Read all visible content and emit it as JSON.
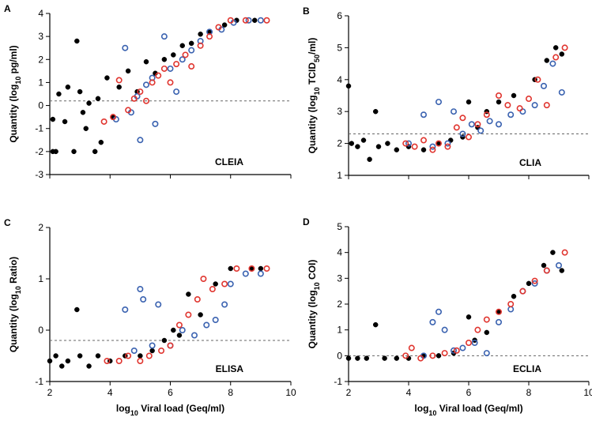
{
  "chart_data": [
    {
      "type": "scatter",
      "panel": "A",
      "ylabel": [
        "Quantity (log",
        "10",
        " pg/ml)"
      ],
      "annotation": "CLEIA",
      "xlim": [
        2,
        10
      ],
      "xticks": [
        2,
        4,
        6,
        8,
        10
      ],
      "show_xtick_labels": false,
      "ylim": [
        -3,
        4
      ],
      "yticks": [
        -3,
        -2,
        -1,
        0,
        1,
        2,
        3,
        4
      ],
      "threshold": 0.2,
      "series": [
        {
          "color": "#000000",
          "filled": true,
          "x": [
            2.1,
            2.2,
            2.1,
            2.3,
            2.5,
            2.6,
            2.8,
            2.9,
            3.0,
            3.1,
            3.2,
            3.3,
            3.5,
            3.6,
            3.7,
            3.9,
            4.1,
            4.3,
            4.6,
            4.9,
            5.2,
            5.5,
            5.8,
            6.1,
            6.4,
            6.7,
            7.0,
            7.3,
            7.8,
            8.2,
            8.8
          ],
          "values": [
            -2,
            -2,
            -0.6,
            0.5,
            -0.7,
            0.8,
            -2,
            2.8,
            0.6,
            -0.3,
            -1,
            0.1,
            -2,
            0.3,
            -1.6,
            1.2,
            -0.5,
            0.8,
            1.5,
            0.6,
            1.9,
            1.4,
            2.0,
            2.2,
            2.6,
            2.7,
            3.1,
            3.2,
            3.5,
            3.7,
            3.7
          ]
        },
        {
          "color": "#3a62b0",
          "filled": false,
          "x": [
            4.2,
            4.5,
            4.7,
            4.9,
            5.0,
            5.2,
            5.4,
            5.5,
            5.8,
            6.0,
            6.2,
            6.4,
            6.7,
            7.0,
            7.3,
            7.7,
            8.1,
            8.6,
            9.0
          ],
          "values": [
            -0.6,
            2.5,
            -0.3,
            0.4,
            -1.5,
            0.9,
            1.2,
            -0.8,
            3.0,
            1.6,
            0.6,
            2.0,
            2.4,
            2.8,
            3.2,
            3.3,
            3.6,
            3.7,
            3.7
          ]
        },
        {
          "color": "#e0352f",
          "filled": false,
          "x": [
            3.8,
            4.1,
            4.3,
            4.6,
            4.8,
            5.0,
            5.2,
            5.4,
            5.6,
            5.8,
            6.0,
            6.2,
            6.5,
            6.7,
            7.0,
            7.3,
            7.6,
            8.0,
            8.5,
            9.2
          ],
          "values": [
            -0.7,
            -0.5,
            1.1,
            -0.2,
            0.3,
            0.6,
            0.2,
            1.0,
            1.3,
            1.6,
            1.0,
            1.8,
            2.2,
            1.7,
            2.6,
            3.0,
            3.4,
            3.7,
            3.7,
            3.7
          ]
        }
      ]
    },
    {
      "type": "scatter",
      "panel": "B",
      "ylabel": [
        "Quantity (log",
        "10",
        " TCID",
        "50",
        "/ml)"
      ],
      "annotation": "CLIA",
      "xlim": [
        2,
        10
      ],
      "xticks": [
        2,
        4,
        6,
        8,
        10
      ],
      "show_xtick_labels": false,
      "ylim": [
        1,
        6
      ],
      "yticks": [
        1,
        2,
        3,
        4,
        5,
        6
      ],
      "threshold": 2.3,
      "series": [
        {
          "color": "#000000",
          "filled": true,
          "x": [
            2.0,
            2.1,
            2.3,
            2.5,
            2.7,
            2.9,
            3.0,
            3.3,
            3.6,
            4.0,
            4.5,
            5.0,
            5.4,
            5.8,
            6.0,
            6.3,
            6.6,
            7.0,
            7.5,
            8.2,
            8.6,
            8.9,
            9.1
          ],
          "values": [
            3.8,
            2.0,
            1.9,
            2.1,
            1.5,
            3.0,
            1.9,
            2.0,
            1.8,
            1.9,
            1.8,
            2.0,
            2.1,
            2.2,
            3.3,
            2.5,
            3.0,
            3.3,
            3.5,
            4.0,
            4.6,
            5.0,
            4.8
          ]
        },
        {
          "color": "#3a62b0",
          "filled": false,
          "x": [
            4.0,
            4.5,
            4.8,
            5.0,
            5.3,
            5.5,
            5.8,
            6.1,
            6.4,
            6.7,
            7.0,
            7.4,
            7.8,
            8.2,
            8.5,
            8.8,
            9.1
          ],
          "values": [
            2.0,
            2.9,
            1.9,
            3.3,
            2.0,
            3.0,
            2.3,
            2.6,
            2.4,
            2.7,
            2.6,
            2.9,
            3.0,
            3.2,
            3.8,
            4.5,
            3.6
          ]
        },
        {
          "color": "#e0352f",
          "filled": false,
          "x": [
            3.9,
            4.2,
            4.5,
            4.8,
            5.0,
            5.3,
            5.6,
            5.8,
            6.0,
            6.3,
            6.6,
            7.0,
            7.3,
            7.7,
            8.0,
            8.3,
            8.6,
            8.9,
            9.2
          ],
          "values": [
            2.0,
            1.9,
            2.1,
            1.8,
            2.0,
            1.9,
            2.5,
            2.8,
            2.2,
            2.6,
            2.9,
            3.5,
            3.2,
            3.1,
            3.4,
            4.0,
            3.2,
            4.7,
            5.0
          ]
        }
      ]
    },
    {
      "type": "scatter",
      "panel": "C",
      "ylabel": [
        "Quantity (log",
        "10",
        " Ratio)"
      ],
      "annotation": "ELISA",
      "xlabel": [
        "log",
        "10",
        " Viral load (Geq/ml)"
      ],
      "xlim": [
        2,
        10
      ],
      "xticks": [
        2,
        4,
        6,
        8,
        10
      ],
      "show_xtick_labels": true,
      "ylim": [
        -1,
        2
      ],
      "yticks": [
        -1,
        0,
        1,
        2
      ],
      "threshold": -0.2,
      "series": [
        {
          "color": "#000000",
          "filled": true,
          "x": [
            2.0,
            2.2,
            2.4,
            2.6,
            2.9,
            3.0,
            3.3,
            3.6,
            4.0,
            4.5,
            5.0,
            5.4,
            5.8,
            6.1,
            6.3,
            6.6,
            7.0,
            7.5,
            8.0,
            8.7,
            9.0
          ],
          "values": [
            -0.6,
            -0.5,
            -0.7,
            -0.6,
            0.4,
            -0.5,
            -0.7,
            -0.5,
            -0.6,
            -0.5,
            -0.5,
            -0.4,
            -0.2,
            0.0,
            -0.1,
            0.7,
            0.3,
            0.9,
            1.2,
            1.2,
            1.2
          ]
        },
        {
          "color": "#3a62b0",
          "filled": false,
          "x": [
            4.5,
            4.8,
            5.0,
            5.1,
            5.4,
            5.6,
            6.0,
            6.4,
            6.8,
            7.2,
            7.5,
            7.8,
            8.0,
            8.5,
            9.0
          ],
          "values": [
            0.4,
            -0.4,
            0.8,
            0.6,
            -0.3,
            0.5,
            -0.3,
            0.0,
            -0.1,
            0.1,
            0.2,
            0.5,
            0.9,
            1.1,
            1.1
          ]
        },
        {
          "color": "#e0352f",
          "filled": false,
          "x": [
            3.9,
            4.3,
            4.6,
            5.0,
            5.3,
            5.7,
            6.0,
            6.3,
            6.6,
            6.9,
            7.1,
            7.4,
            7.8,
            8.2,
            8.7,
            9.2
          ],
          "values": [
            -0.6,
            -0.6,
            -0.5,
            -0.6,
            -0.5,
            -0.4,
            -0.3,
            0.1,
            0.3,
            0.6,
            1.0,
            0.8,
            0.9,
            1.2,
            1.2,
            1.2
          ]
        }
      ]
    },
    {
      "type": "scatter",
      "panel": "D",
      "ylabel": [
        "Quantity (log",
        "10",
        " COI)"
      ],
      "annotation": "ECLIA",
      "xlabel": [
        "log",
        "10",
        " Viral load (Geq/ml)"
      ],
      "xlim": [
        2,
        10
      ],
      "xticks": [
        2,
        4,
        6,
        8,
        10
      ],
      "show_xtick_labels": true,
      "ylim": [
        -1,
        5
      ],
      "yticks": [
        -1,
        0,
        1,
        2,
        3,
        4,
        5
      ],
      "threshold": 0,
      "series": [
        {
          "color": "#000000",
          "filled": true,
          "x": [
            2.0,
            2.3,
            2.6,
            2.9,
            3.2,
            3.6,
            4.0,
            4.5,
            5.0,
            5.5,
            6.0,
            6.2,
            6.6,
            7.0,
            7.5,
            8.0,
            8.5,
            8.8,
            9.1
          ],
          "values": [
            -0.1,
            -0.1,
            -0.1,
            1.2,
            -0.1,
            -0.1,
            -0.1,
            0.0,
            0.0,
            0.1,
            1.5,
            0.6,
            0.9,
            1.7,
            2.3,
            2.8,
            3.5,
            4.0,
            3.3
          ]
        },
        {
          "color": "#3a62b0",
          "filled": false,
          "x": [
            4.5,
            4.8,
            5.0,
            5.2,
            5.5,
            5.8,
            6.2,
            6.6,
            7.0,
            7.4,
            7.8,
            8.2,
            8.6,
            9.0
          ],
          "values": [
            0.0,
            1.3,
            1.7,
            1.0,
            0.2,
            0.3,
            0.5,
            0.1,
            1.3,
            1.8,
            2.5,
            2.8,
            3.3,
            3.5
          ]
        },
        {
          "color": "#e0352f",
          "filled": false,
          "x": [
            3.9,
            4.1,
            4.4,
            4.8,
            5.2,
            5.6,
            6.0,
            6.3,
            6.6,
            7.0,
            7.4,
            7.8,
            8.2,
            8.6,
            9.2
          ],
          "values": [
            0.0,
            0.3,
            -0.1,
            0.0,
            0.1,
            0.2,
            0.5,
            1.0,
            1.4,
            1.7,
            2.0,
            2.5,
            2.9,
            3.3,
            4.0
          ]
        }
      ]
    }
  ]
}
